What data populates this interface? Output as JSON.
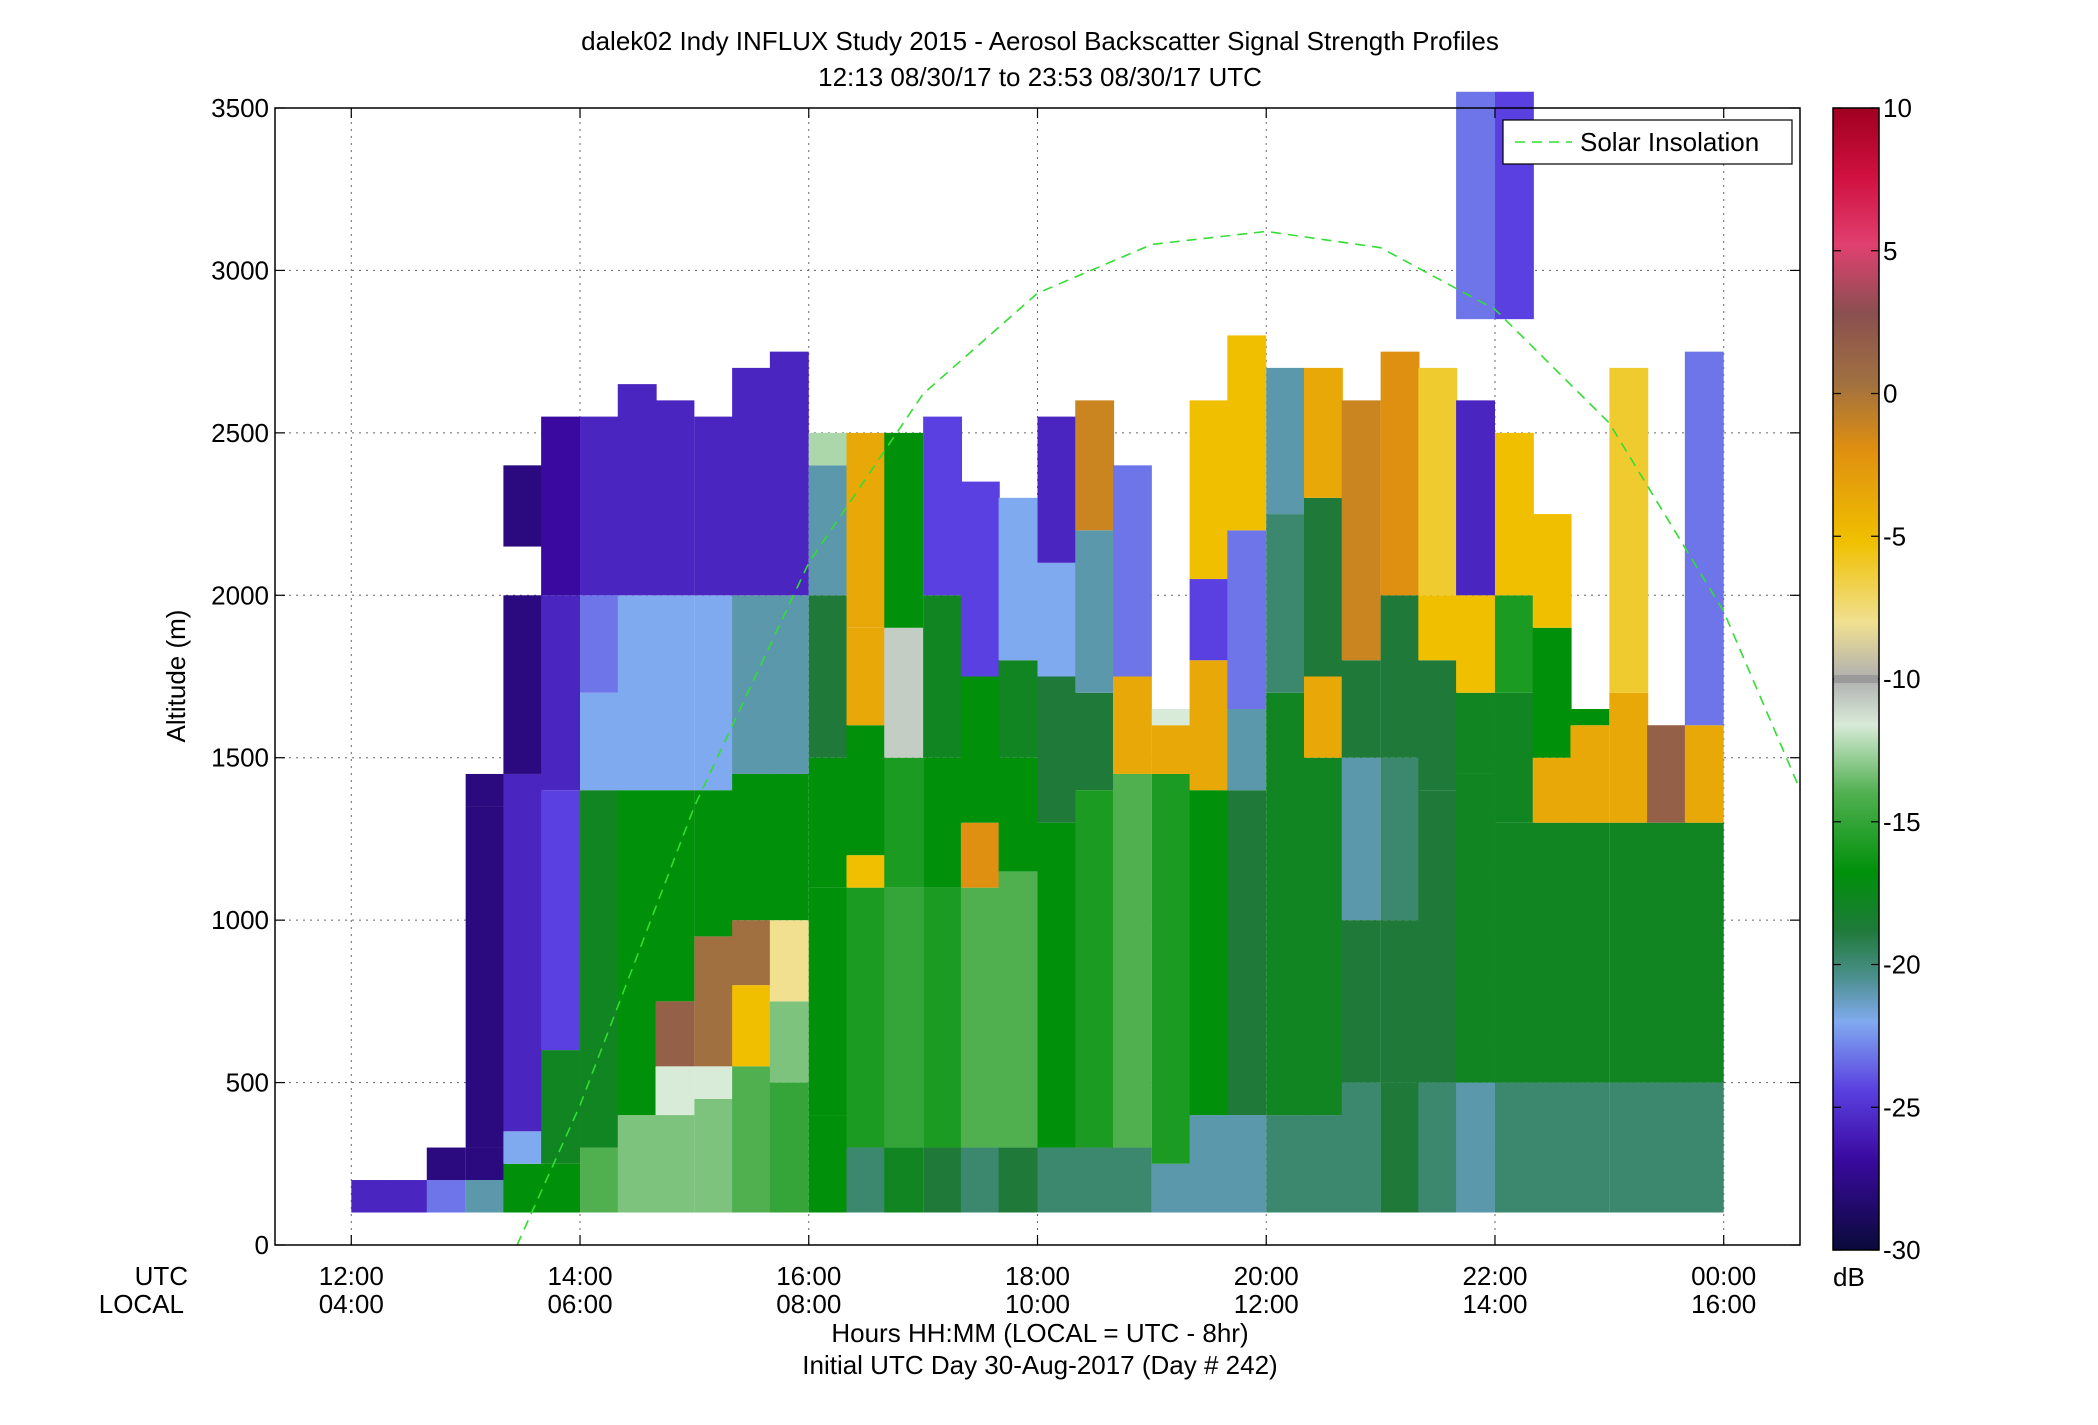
{
  "chart_data": {
    "type": "heatmap",
    "title": "dalek02 Indy INFLUX Study 2015 - Aerosol Backscatter Signal Strength Profiles",
    "subtitle": "12:13 08/30/17 to 23:53 08/30/17  UTC",
    "ylabel": "Altitude (m)",
    "xlabel": "Hours HH:MM  (LOCAL = UTC - 8hr)",
    "xlabel2": "Initial UTC Day 30-Aug-2017 (Day # 242)",
    "x_row_labels": [
      "UTC",
      "LOCAL"
    ],
    "xlim_hours": [
      11.333,
      24.667
    ],
    "ylim": [
      0,
      3500
    ],
    "grid": true,
    "x_ticks": [
      {
        "value": 12,
        "utc": "12:00",
        "local": "04:00"
      },
      {
        "value": 14,
        "utc": "14:00",
        "local": "06:00"
      },
      {
        "value": 16,
        "utc": "16:00",
        "local": "08:00"
      },
      {
        "value": 18,
        "utc": "18:00",
        "local": "10:00"
      },
      {
        "value": 20,
        "utc": "20:00",
        "local": "12:00"
      },
      {
        "value": 22,
        "utc": "22:00",
        "local": "14:00"
      },
      {
        "value": 24,
        "utc": "00:00",
        "local": "16:00"
      }
    ],
    "y_ticks": [
      0,
      500,
      1000,
      1500,
      2000,
      2500,
      3000,
      3500
    ],
    "colorbar": {
      "label": "dB",
      "range": [
        -30,
        10
      ],
      "ticks": [
        10,
        5,
        0,
        -5,
        -10,
        -15,
        -20,
        -25,
        -30
      ],
      "marker": -10
    },
    "legend": {
      "entries": [
        "Solar Insolation"
      ],
      "position": "top-right"
    },
    "solar_insolation": {
      "line_style": "dashed",
      "color": "#33dd33",
      "points": [
        [
          13.45,
          0
        ],
        [
          14.0,
          430
        ],
        [
          15.0,
          1350
        ],
        [
          16.0,
          2100
        ],
        [
          17.0,
          2620
        ],
        [
          18.0,
          2930
        ],
        [
          19.0,
          3080
        ],
        [
          20.0,
          3120
        ],
        [
          21.0,
          3070
        ],
        [
          22.0,
          2880
        ],
        [
          23.0,
          2530
        ],
        [
          24.0,
          1950
        ],
        [
          24.67,
          1400
        ]
      ]
    },
    "heat_columns": [
      {
        "t": 12.17,
        "cells": [
          [
            100,
            200,
            -26
          ]
        ]
      },
      {
        "t": 12.5,
        "cells": [
          [
            100,
            200,
            -26
          ]
        ]
      },
      {
        "t": 12.83,
        "cells": [
          [
            100,
            200,
            -24
          ],
          [
            200,
            300,
            -28
          ]
        ]
      },
      {
        "t": 13.17,
        "cells": [
          [
            100,
            200,
            -22
          ],
          [
            200,
            300,
            -28
          ],
          [
            300,
            1350,
            -28
          ],
          [
            1350,
            1450,
            -28
          ]
        ]
      },
      {
        "t": 13.5,
        "cells": [
          [
            100,
            250,
            -18
          ],
          [
            250,
            350,
            -23
          ],
          [
            350,
            1450,
            -26
          ],
          [
            1450,
            2000,
            -28
          ],
          [
            2150,
            2400,
            -28
          ]
        ]
      },
      {
        "t": 13.83,
        "cells": [
          [
            100,
            250,
            -18
          ],
          [
            250,
            600,
            -19
          ],
          [
            600,
            1400,
            -25
          ],
          [
            1400,
            2000,
            -26
          ],
          [
            2000,
            2550,
            -27
          ]
        ]
      },
      {
        "t": 14.17,
        "cells": [
          [
            100,
            300,
            -15
          ],
          [
            300,
            1400,
            -19
          ],
          [
            1400,
            1700,
            -23
          ],
          [
            1700,
            2000,
            -24
          ],
          [
            2000,
            2550,
            -26
          ]
        ]
      },
      {
        "t": 14.5,
        "cells": [
          [
            100,
            400,
            -14
          ],
          [
            400,
            1400,
            -18
          ],
          [
            1400,
            2000,
            -23
          ],
          [
            2000,
            2650,
            -26
          ]
        ]
      },
      {
        "t": 14.83,
        "cells": [
          [
            100,
            400,
            -14
          ],
          [
            400,
            550,
            -12
          ],
          [
            550,
            750,
            1
          ],
          [
            750,
            1400,
            -18
          ],
          [
            1400,
            2000,
            -23
          ],
          [
            2000,
            2600,
            -26
          ]
        ]
      },
      {
        "t": 15.17,
        "cells": [
          [
            100,
            450,
            -14
          ],
          [
            450,
            550,
            -12
          ],
          [
            550,
            950,
            0
          ],
          [
            950,
            1400,
            -18
          ],
          [
            1400,
            2000,
            -23
          ],
          [
            2000,
            2550,
            -26
          ]
        ]
      },
      {
        "t": 15.5,
        "cells": [
          [
            100,
            550,
            -15
          ],
          [
            550,
            800,
            -5
          ],
          [
            800,
            1000,
            0
          ],
          [
            1000,
            1450,
            -18
          ],
          [
            1450,
            2000,
            -22
          ],
          [
            2000,
            2700,
            -26
          ]
        ]
      },
      {
        "t": 15.83,
        "cells": [
          [
            100,
            500,
            -16
          ],
          [
            500,
            750,
            -14
          ],
          [
            750,
            1000,
            -8
          ],
          [
            1000,
            1450,
            -18
          ],
          [
            1450,
            2000,
            -22
          ],
          [
            2000,
            2750,
            -26
          ]
        ]
      },
      {
        "t": 16.17,
        "cells": [
          [
            100,
            400,
            -18
          ],
          [
            400,
            1100,
            -18
          ],
          [
            1100,
            1500,
            -18
          ],
          [
            1500,
            2000,
            -20
          ],
          [
            2000,
            2400,
            -22
          ],
          [
            2400,
            2500,
            -13
          ]
        ]
      },
      {
        "t": 16.5,
        "cells": [
          [
            100,
            300,
            -21
          ],
          [
            300,
            1100,
            -17
          ],
          [
            1100,
            1200,
            -5
          ],
          [
            1200,
            1600,
            -18
          ],
          [
            1600,
            1900,
            -4
          ],
          [
            1900,
            2500,
            -4
          ]
        ]
      },
      {
        "t": 16.83,
        "cells": [
          [
            100,
            300,
            -19
          ],
          [
            300,
            1100,
            -16
          ],
          [
            1100,
            1500,
            -17
          ],
          [
            1500,
            1900,
            -11
          ],
          [
            1900,
            2500,
            -18
          ]
        ]
      },
      {
        "t": 17.17,
        "cells": [
          [
            100,
            300,
            -20
          ],
          [
            300,
            1100,
            -17
          ],
          [
            1100,
            1500,
            -18
          ],
          [
            1500,
            2000,
            -19
          ],
          [
            2000,
            2550,
            -25
          ]
        ]
      },
      {
        "t": 17.5,
        "cells": [
          [
            100,
            300,
            -21
          ],
          [
            300,
            1100,
            -15
          ],
          [
            1100,
            1300,
            -3
          ],
          [
            1300,
            1750,
            -18
          ],
          [
            1750,
            2350,
            -25
          ]
        ]
      },
      {
        "t": 17.83,
        "cells": [
          [
            100,
            300,
            -20
          ],
          [
            300,
            1150,
            -15
          ],
          [
            1150,
            1500,
            -18
          ],
          [
            1500,
            1800,
            -19
          ],
          [
            1800,
            2300,
            -23
          ]
        ]
      },
      {
        "t": 18.17,
        "cells": [
          [
            100,
            300,
            -21
          ],
          [
            300,
            1300,
            -18
          ],
          [
            1300,
            1750,
            -20
          ],
          [
            1750,
            2100,
            -23
          ],
          [
            2100,
            2550,
            -26
          ]
        ]
      },
      {
        "t": 18.5,
        "cells": [
          [
            100,
            300,
            -21
          ],
          [
            300,
            1400,
            -17
          ],
          [
            1400,
            1700,
            -20
          ],
          [
            1700,
            2200,
            -22
          ],
          [
            2200,
            2600,
            -2
          ]
        ]
      },
      {
        "t": 18.83,
        "cells": [
          [
            100,
            300,
            -21
          ],
          [
            300,
            1450,
            -15
          ],
          [
            1450,
            1750,
            -4
          ],
          [
            1750,
            2400,
            -24
          ]
        ]
      },
      {
        "t": 19.17,
        "cells": [
          [
            100,
            250,
            -22
          ],
          [
            250,
            1450,
            -17
          ],
          [
            1450,
            1600,
            -4
          ],
          [
            1600,
            1650,
            -12
          ]
        ]
      },
      {
        "t": 19.5,
        "cells": [
          [
            100,
            400,
            -22
          ],
          [
            400,
            1400,
            -18
          ],
          [
            1400,
            1800,
            -4
          ],
          [
            1800,
            2050,
            -25
          ],
          [
            2050,
            2600,
            -5
          ]
        ]
      },
      {
        "t": 19.83,
        "cells": [
          [
            100,
            400,
            -22
          ],
          [
            400,
            1400,
            -20
          ],
          [
            1400,
            1650,
            -22
          ],
          [
            1650,
            2200,
            -24
          ],
          [
            2200,
            2800,
            -5
          ]
        ]
      },
      {
        "t": 20.17,
        "cells": [
          [
            100,
            400,
            -21
          ],
          [
            400,
            1700,
            -19
          ],
          [
            1700,
            2250,
            -21
          ],
          [
            2250,
            2700,
            -22
          ]
        ]
      },
      {
        "t": 20.5,
        "cells": [
          [
            100,
            400,
            -21
          ],
          [
            400,
            1500,
            -19
          ],
          [
            1500,
            1750,
            -4
          ],
          [
            1750,
            2300,
            -20
          ],
          [
            2300,
            2700,
            -4
          ]
        ]
      },
      {
        "t": 20.83,
        "cells": [
          [
            100,
            500,
            -21
          ],
          [
            500,
            1000,
            -20
          ],
          [
            1000,
            1500,
            -22
          ],
          [
            1500,
            1800,
            -20
          ],
          [
            1800,
            2600,
            -2
          ]
        ]
      },
      {
        "t": 21.17,
        "cells": [
          [
            100,
            500,
            -20
          ],
          [
            500,
            1000,
            -20
          ],
          [
            1000,
            1500,
            -21
          ],
          [
            1500,
            2000,
            -20
          ],
          [
            2000,
            2750,
            -3
          ]
        ]
      },
      {
        "t": 21.5,
        "cells": [
          [
            100,
            500,
            -21
          ],
          [
            500,
            1400,
            -20
          ],
          [
            1400,
            1800,
            -20
          ],
          [
            1800,
            2000,
            -5
          ],
          [
            2000,
            2700,
            -6
          ]
        ]
      },
      {
        "t": 21.83,
        "cells": [
          [
            100,
            500,
            -22
          ],
          [
            500,
            1450,
            -19
          ],
          [
            1450,
            1700,
            -19
          ],
          [
            1700,
            2000,
            -5
          ],
          [
            2000,
            2600,
            -26
          ],
          [
            2850,
            3550,
            -24
          ]
        ]
      },
      {
        "t": 22.17,
        "cells": [
          [
            100,
            500,
            -21
          ],
          [
            500,
            1300,
            -19
          ],
          [
            1300,
            1700,
            -19
          ],
          [
            1700,
            2000,
            -17
          ],
          [
            2000,
            2500,
            -5
          ],
          [
            2850,
            3550,
            -25
          ]
        ]
      },
      {
        "t": 22.5,
        "cells": [
          [
            100,
            500,
            -21
          ],
          [
            500,
            1300,
            -19
          ],
          [
            1300,
            1500,
            -4
          ],
          [
            1500,
            1900,
            -18
          ],
          [
            1900,
            2250,
            -5
          ]
        ]
      },
      {
        "t": 22.83,
        "cells": [
          [
            100,
            500,
            -21
          ],
          [
            500,
            1300,
            -19
          ],
          [
            1300,
            1600,
            -4
          ],
          [
            1600,
            1650,
            -18
          ]
        ]
      },
      {
        "t": 23.17,
        "cells": [
          [
            100,
            500,
            -21
          ],
          [
            500,
            1300,
            -19
          ],
          [
            1300,
            1700,
            -4
          ],
          [
            1700,
            2700,
            -6
          ]
        ]
      },
      {
        "t": 23.5,
        "cells": [
          [
            100,
            500,
            -21
          ],
          [
            500,
            1300,
            -19
          ],
          [
            1300,
            1600,
            1
          ]
        ]
      },
      {
        "t": 23.83,
        "cells": [
          [
            100,
            500,
            -21
          ],
          [
            500,
            1300,
            -19
          ],
          [
            1300,
            1600,
            -4
          ],
          [
            1600,
            2750,
            -24
          ]
        ]
      }
    ]
  }
}
